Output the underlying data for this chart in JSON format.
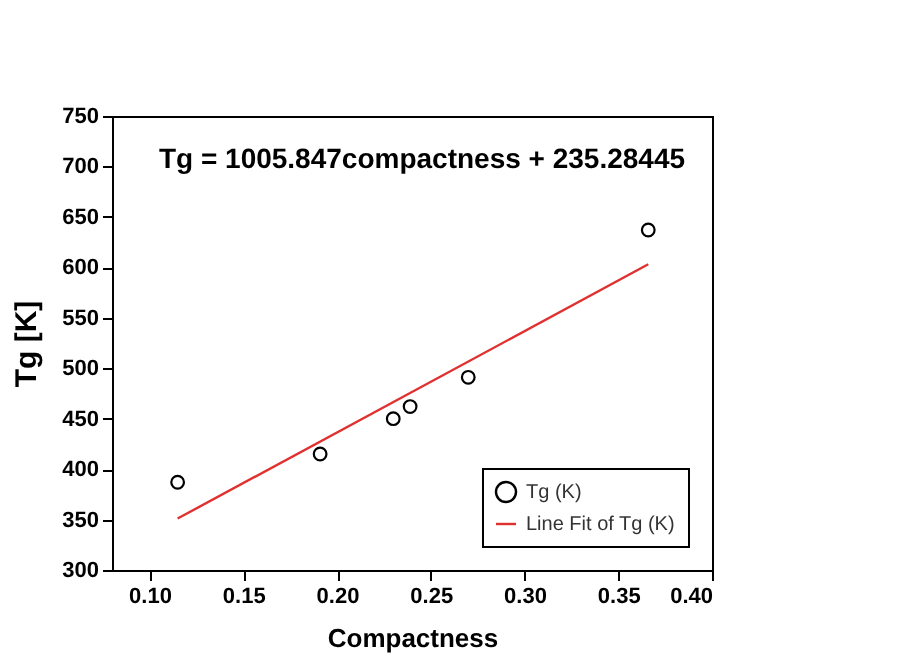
{
  "chart_data": {
    "type": "scatter",
    "xlabel": "Compactness",
    "ylabel": "Tg [K]",
    "annotations": [
      "Tg = 1005.847compactness + 235.28445"
    ],
    "xlim": [
      0.08,
      0.4
    ],
    "xticks": [
      {
        "value": 0.1,
        "label": "0.10"
      },
      0.15,
      {
        "value": 0.2,
        "label": "0.20"
      },
      0.25,
      {
        "value": 0.3,
        "label": "0.30"
      },
      0.35,
      {
        "value": 0.4,
        "label": "0.40"
      }
    ],
    "ylim": [
      300,
      750
    ],
    "yticks": [
      300,
      350,
      400,
      450,
      500,
      550,
      600,
      650,
      700,
      750
    ],
    "grid": false,
    "legend": "bottom right",
    "series": [
      {
        "name": "Tg (K)",
        "type": "scatter",
        "marker": "circle",
        "color": "#000000",
        "x": [
          0.115,
          0.191,
          0.23,
          0.239,
          0.27,
          0.366
        ],
        "values": [
          387,
          415,
          450,
          462,
          491,
          637
        ]
      },
      {
        "name": "Line Fit of Tg (K)",
        "type": "line",
        "color": "#e03030",
        "marker": "none",
        "line_style": "solid",
        "x": [
          0.115,
          0.366
        ],
        "values": [
          351,
          603
        ]
      }
    ]
  }
}
